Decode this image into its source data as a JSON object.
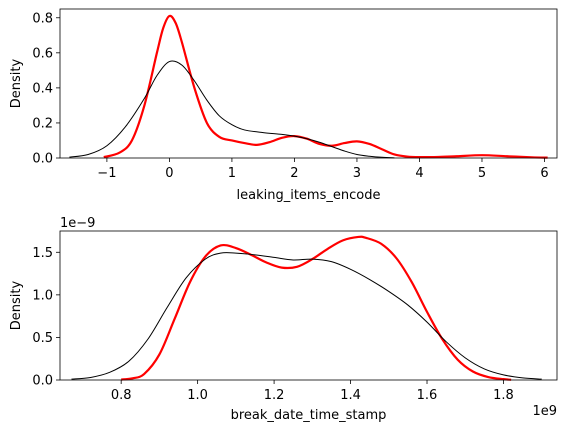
{
  "chart_data": [
    {
      "type": "line",
      "xlabel": "leaking_items_encode",
      "ylabel": "Density",
      "xlim": [
        -1.75,
        6.2
      ],
      "ylim": [
        0,
        0.85
      ],
      "xticks": [
        -1,
        0,
        1,
        2,
        3,
        4,
        5,
        6
      ],
      "xtick_labels": [
        "−1",
        "0",
        "1",
        "2",
        "3",
        "4",
        "5",
        "6"
      ],
      "yticks": [
        0.0,
        0.2,
        0.4,
        0.6,
        0.8
      ],
      "ytick_labels": [
        "0.0",
        "0.2",
        "0.4",
        "0.6",
        "0.8"
      ],
      "series": [
        {
          "name": "red-kde",
          "color": "#ff0000",
          "x": [
            -1.05,
            -0.8,
            -0.6,
            -0.4,
            -0.2,
            -0.1,
            0.0,
            0.1,
            0.2,
            0.4,
            0.6,
            0.8,
            1.0,
            1.2,
            1.4,
            1.6,
            1.8,
            2.0,
            2.2,
            2.4,
            2.6,
            2.8,
            3.0,
            3.2,
            3.4,
            3.6,
            3.8,
            4.0,
            4.3,
            4.6,
            5.0,
            5.4,
            5.8,
            6.05
          ],
          "y": [
            0.005,
            0.03,
            0.1,
            0.3,
            0.6,
            0.74,
            0.81,
            0.77,
            0.66,
            0.4,
            0.2,
            0.12,
            0.1,
            0.085,
            0.075,
            0.09,
            0.115,
            0.125,
            0.11,
            0.08,
            0.07,
            0.085,
            0.095,
            0.08,
            0.05,
            0.02,
            0.008,
            0.005,
            0.006,
            0.01,
            0.016,
            0.01,
            0.004,
            0.002
          ]
        },
        {
          "name": "black-kde",
          "color": "#000000",
          "x": [
            -1.6,
            -1.3,
            -1.0,
            -0.7,
            -0.4,
            -0.2,
            0.0,
            0.2,
            0.4,
            0.6,
            0.8,
            1.0,
            1.2,
            1.5,
            1.8,
            2.0,
            2.2,
            2.4,
            2.6,
            2.8,
            3.0,
            3.2,
            3.4,
            3.6
          ],
          "y": [
            0.005,
            0.02,
            0.07,
            0.18,
            0.34,
            0.47,
            0.55,
            0.53,
            0.44,
            0.33,
            0.24,
            0.19,
            0.16,
            0.145,
            0.135,
            0.125,
            0.11,
            0.09,
            0.065,
            0.04,
            0.02,
            0.01,
            0.004,
            0.001
          ]
        }
      ]
    },
    {
      "type": "line",
      "xlabel": "break_date_time_stamp",
      "ylabel": "Density",
      "x_offset_label": "1e9",
      "y_offset_label": "1e−9",
      "xlim": [
        0.64,
        1.94
      ],
      "ylim": [
        0,
        1.75
      ],
      "xticks": [
        0.8,
        1.0,
        1.2,
        1.4,
        1.6,
        1.8
      ],
      "xtick_labels": [
        "0.8",
        "1.0",
        "1.2",
        "1.4",
        "1.6",
        "1.8"
      ],
      "yticks": [
        0.0,
        0.5,
        1.0,
        1.5
      ],
      "ytick_labels": [
        "0.0",
        "0.5",
        "1.0",
        "1.5"
      ],
      "series": [
        {
          "name": "red-kde",
          "color": "#ff0000",
          "x": [
            0.8,
            0.83,
            0.86,
            0.9,
            0.94,
            0.98,
            1.02,
            1.06,
            1.1,
            1.14,
            1.18,
            1.22,
            1.26,
            1.3,
            1.34,
            1.38,
            1.42,
            1.44,
            1.48,
            1.52,
            1.56,
            1.6,
            1.64,
            1.68,
            1.72,
            1.76,
            1.8,
            1.82
          ],
          "y": [
            0.005,
            0.02,
            0.07,
            0.3,
            0.72,
            1.15,
            1.45,
            1.58,
            1.55,
            1.47,
            1.38,
            1.32,
            1.33,
            1.42,
            1.54,
            1.64,
            1.68,
            1.67,
            1.6,
            1.43,
            1.15,
            0.8,
            0.48,
            0.24,
            0.1,
            0.035,
            0.01,
            0.003
          ]
        },
        {
          "name": "black-kde",
          "color": "#000000",
          "x": [
            0.67,
            0.72,
            0.77,
            0.82,
            0.87,
            0.92,
            0.97,
            1.02,
            1.06,
            1.1,
            1.15,
            1.2,
            1.25,
            1.3,
            1.35,
            1.4,
            1.45,
            1.5,
            1.55,
            1.6,
            1.65,
            1.7,
            1.75,
            1.8,
            1.85,
            1.9
          ],
          "y": [
            0.01,
            0.03,
            0.09,
            0.22,
            0.48,
            0.85,
            1.2,
            1.42,
            1.49,
            1.49,
            1.47,
            1.44,
            1.41,
            1.42,
            1.39,
            1.3,
            1.18,
            1.04,
            0.88,
            0.68,
            0.45,
            0.26,
            0.13,
            0.06,
            0.025,
            0.01
          ]
        }
      ]
    }
  ]
}
